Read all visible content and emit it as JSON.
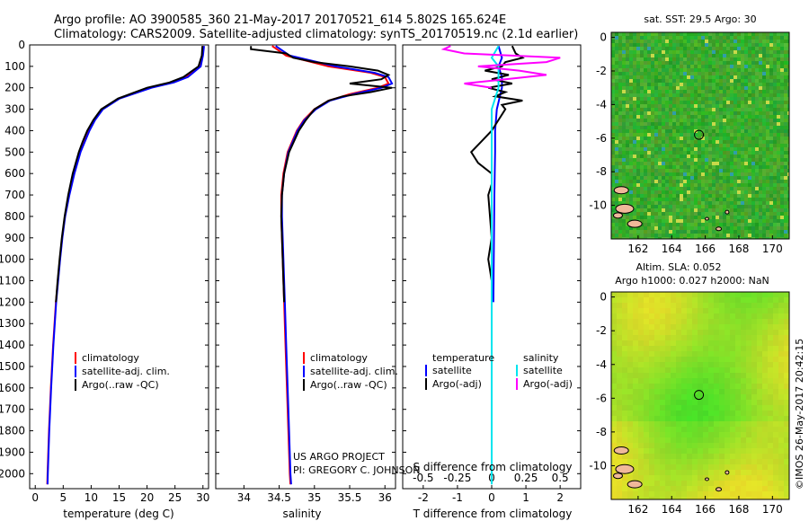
{
  "header": {
    "line1": "Argo profile: AO 3900585_360 21-May-2017 20170521_614 5.802S 165.624E",
    "line2": "Climatology: CARS2009. Satellite-adjusted climatology: synTS_20170519.nc (2.1d earlier)"
  },
  "credits": {
    "project": "US ARGO PROJECT",
    "pi": "PI: GREGORY C. JOHNSON",
    "watermark": "©IMOS 26-May-2017 20:42:15"
  },
  "colors": {
    "climatology": "#ff0000",
    "satellite": "#0000ff",
    "argo": "#000000",
    "salinity_satellite": "#00e5ee",
    "salinity_argo": "#ff00ff",
    "island": "#f0b89a"
  },
  "chart_data": [
    {
      "type": "line",
      "id": "temperature-profile",
      "xlabel": "temperature (deg C)",
      "ylabel": "",
      "xlim": [
        -1,
        31
      ],
      "ylim": [
        2070,
        0
      ],
      "xticks": [
        0,
        5,
        10,
        15,
        20,
        25,
        30
      ],
      "yticks": [
        0,
        100,
        200,
        300,
        400,
        500,
        600,
        700,
        800,
        900,
        1000,
        1100,
        1200,
        1300,
        1400,
        1500,
        1600,
        1700,
        1800,
        1900,
        2000
      ],
      "legend": [
        "climatology",
        "satellite-adj. clim.",
        "Argo(..raw -QC)"
      ],
      "legend_position": "lower-left",
      "series": [
        {
          "name": "climatology",
          "color": "#ff0000",
          "depth": [
            5,
            50,
            100,
            150,
            175,
            200,
            250,
            300,
            350,
            400,
            500,
            600,
            700,
            800,
            900,
            1000,
            1200,
            1400,
            1600,
            1800,
            2000,
            2050
          ],
          "values": [
            30.0,
            29.9,
            29.4,
            27.0,
            24.5,
            20.5,
            15.0,
            12.0,
            10.6,
            9.6,
            8.0,
            6.9,
            6.0,
            5.3,
            4.8,
            4.4,
            3.7,
            3.2,
            2.8,
            2.45,
            2.2,
            2.15
          ]
        },
        {
          "name": "satellite-adj. clim.",
          "color": "#0000ff",
          "depth": [
            5,
            50,
            100,
            150,
            175,
            200,
            250,
            300,
            350,
            400,
            500,
            600,
            700,
            800,
            900,
            1000,
            1200,
            1400,
            1600,
            1800,
            2000,
            2050
          ],
          "values": [
            30.2,
            30.0,
            29.6,
            27.3,
            24.8,
            20.8,
            15.1,
            12.1,
            10.7,
            9.7,
            8.1,
            7.0,
            6.1,
            5.35,
            4.85,
            4.45,
            3.75,
            3.25,
            2.85,
            2.5,
            2.25,
            2.2
          ]
        },
        {
          "name": "Argo(..raw -QC)",
          "color": "#000000",
          "depth": [
            5,
            50,
            100,
            150,
            175,
            200,
            250,
            300,
            350,
            400,
            450,
            500,
            600,
            700,
            800,
            900,
            1000,
            1100,
            1200
          ],
          "values": [
            29.9,
            29.8,
            29.2,
            26.5,
            24.0,
            20.0,
            14.8,
            11.8,
            10.4,
            9.3,
            8.5,
            7.8,
            6.7,
            5.9,
            5.25,
            4.75,
            4.35,
            4.0,
            3.7
          ]
        }
      ]
    },
    {
      "type": "line",
      "id": "salinity-profile",
      "xlabel": "salinity",
      "xlim": [
        33.6,
        36.15
      ],
      "ylim": [
        2070,
        0
      ],
      "xticks": [
        34,
        34.5,
        35,
        35.5,
        36
      ],
      "legend": [
        "climatology",
        "satellite-adj. clim.",
        "Argo(..raw -QC)"
      ],
      "legend_position": "lower-left",
      "series": [
        {
          "name": "climatology",
          "color": "#ff0000",
          "depth": [
            5,
            50,
            100,
            130,
            150,
            180,
            200,
            230,
            260,
            300,
            350,
            400,
            500,
            600,
            700,
            800,
            900,
            1000,
            1200,
            1400,
            1600,
            1800,
            2000,
            2050
          ],
          "values": [
            34.4,
            34.6,
            35.2,
            35.8,
            36.0,
            36.05,
            35.9,
            35.5,
            35.2,
            35.0,
            34.85,
            34.75,
            34.62,
            34.56,
            34.53,
            34.53,
            34.54,
            34.55,
            34.57,
            34.59,
            34.61,
            34.63,
            34.65,
            34.66
          ]
        },
        {
          "name": "satellite-adj. clim.",
          "color": "#0000ff",
          "depth": [
            5,
            50,
            100,
            130,
            150,
            180,
            200,
            230,
            260,
            300,
            350,
            400,
            500,
            600,
            700,
            800,
            900,
            1000,
            1200,
            1400,
            1600,
            1800,
            2000,
            2050
          ],
          "values": [
            34.45,
            34.65,
            35.3,
            35.85,
            36.05,
            36.1,
            35.95,
            35.55,
            35.22,
            35.02,
            34.86,
            34.76,
            34.63,
            34.57,
            34.54,
            34.54,
            34.55,
            34.56,
            34.58,
            34.6,
            34.62,
            34.64,
            34.66,
            34.67
          ]
        },
        {
          "name": "Argo(..raw -QC)",
          "color": "#000000",
          "depth": [
            5,
            20,
            40,
            60,
            80,
            100,
            120,
            140,
            160,
            180,
            200,
            220,
            240,
            260,
            300,
            350,
            400,
            500,
            600,
            700,
            800,
            900,
            1000,
            1100,
            1200
          ],
          "values": [
            34.1,
            34.1,
            34.6,
            34.7,
            35.0,
            35.5,
            35.9,
            36.05,
            35.95,
            35.5,
            36.1,
            35.8,
            35.4,
            35.2,
            35.0,
            34.88,
            34.78,
            34.64,
            34.57,
            34.54,
            34.53,
            34.54,
            34.55,
            34.56,
            34.57
          ]
        }
      ]
    },
    {
      "type": "line",
      "id": "difference-profile",
      "xlabel": "T difference from climatology",
      "xlabel_top": "S difference from climatology",
      "xlim": [
        -2.6,
        2.6
      ],
      "ylim": [
        2070,
        0
      ],
      "xticks": [
        -2,
        -1,
        0,
        1,
        2
      ],
      "xticks_s": [
        -0.5,
        -0.25,
        0,
        0.25,
        0.5
      ],
      "xticks_s_labels": [
        "-0.5",
        "-0.25",
        "0",
        "0.25",
        "0.5"
      ],
      "legend_headers": [
        "temperature",
        "salinity"
      ],
      "legend": [
        "satellite",
        "Argo(-adj)",
        "satellite",
        "Argo(-adj)"
      ],
      "series": [
        {
          "name": "temperature satellite",
          "color": "#0000ff",
          "depth": [
            5,
            60,
            100,
            150,
            200,
            300,
            400,
            500,
            700,
            1000,
            1200
          ],
          "values": [
            0.2,
            0.3,
            0.2,
            0.3,
            0.3,
            0.15,
            0.1,
            0.1,
            0.08,
            0.06,
            0.05
          ]
        },
        {
          "name": "temperature Argo(-adj)",
          "color": "#000000",
          "depth": [
            5,
            40,
            60,
            80,
            100,
            120,
            140,
            160,
            180,
            200,
            220,
            240,
            260,
            280,
            300,
            350,
            400,
            450,
            500,
            550,
            600,
            650,
            700,
            800,
            900,
            1000,
            1100,
            1200
          ],
          "values": [
            0.6,
            0.7,
            0.9,
            0.4,
            0.3,
            -0.2,
            0.5,
            0.0,
            0.6,
            -0.1,
            0.4,
            0.1,
            0.9,
            0.3,
            0.4,
            0.2,
            0.0,
            -0.3,
            -0.6,
            -0.4,
            0.0,
            0.0,
            -0.1,
            -0.05,
            0.0,
            -0.1,
            0.0,
            0.0
          ]
        },
        {
          "name": "salinity satellite",
          "color": "#00e5ee",
          "depth": [
            5,
            60,
            100,
            200,
            300,
            400,
            600,
            1000,
            1400,
            1800,
            2050
          ],
          "values": [
            0.05,
            0.0,
            0.05,
            0.05,
            0.0,
            0.0,
            0.0,
            0.0,
            0.0,
            0.0,
            0.0
          ]
        },
        {
          "name": "salinity Argo(-adj)",
          "color": "#ff00ff",
          "depth": [
            5,
            20,
            40,
            60,
            80,
            100,
            120,
            140,
            160,
            180,
            200
          ],
          "values": [
            -0.3,
            -0.35,
            -0.2,
            0.5,
            0.4,
            -0.1,
            0.2,
            0.4,
            0.1,
            -0.2,
            0.0
          ]
        }
      ]
    },
    {
      "type": "heatmap",
      "id": "sst-map",
      "title": "sat. SST: 29.5 Argo: 30",
      "xlim": [
        160.4,
        171
      ],
      "ylim": [
        -12,
        0.3
      ],
      "xticks": [
        162,
        164,
        166,
        168,
        170
      ],
      "yticks": [
        0,
        -2,
        -4,
        -6,
        -8,
        -10
      ],
      "marker": {
        "lon": 165.624,
        "lat": -5.802
      }
    },
    {
      "type": "heatmap",
      "id": "sla-map",
      "title_line1": "Altim. SLA: 0.052",
      "title_line2": "Argo h1000: 0.027 h2000: NaN",
      "xlim": [
        160.4,
        171
      ],
      "ylim": [
        -12,
        0.3
      ],
      "xticks": [
        162,
        164,
        166,
        168,
        170
      ],
      "yticks": [
        0,
        -2,
        -4,
        -6,
        -8,
        -10
      ],
      "marker": {
        "lon": 165.624,
        "lat": -5.802
      }
    }
  ]
}
